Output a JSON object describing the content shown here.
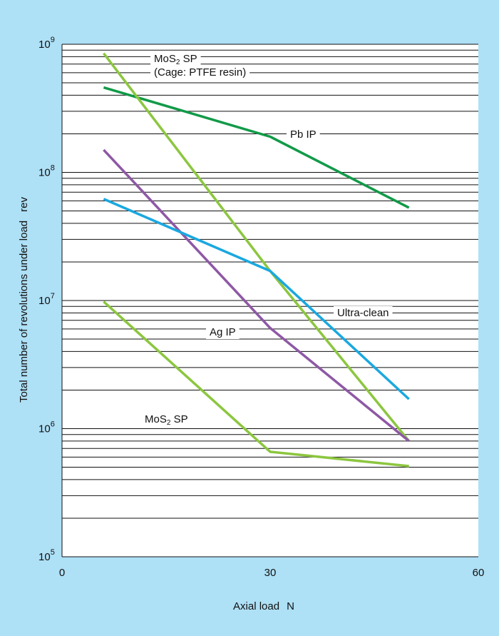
{
  "chart_data": {
    "type": "line",
    "xlabel": "Axial load",
    "xunit": "N",
    "ylabel": "Total number of revolutions under load",
    "yunit": "rev",
    "xlim": [
      0,
      60
    ],
    "ylim": [
      100000,
      1000000000
    ],
    "yscale": "log",
    "x_ticks": [
      "0",
      "30",
      "60"
    ],
    "y_ticks": [
      {
        "base": "10",
        "exp": "5"
      },
      {
        "base": "10",
        "exp": "6"
      },
      {
        "base": "10",
        "exp": "7"
      },
      {
        "base": "10",
        "exp": "8"
      },
      {
        "base": "10",
        "exp": "9"
      }
    ],
    "grid": "horizontal lines at each minor decade step, broken behind labels",
    "colors": {
      "background": "#aee0f6",
      "plot_area": "#ffffff",
      "green_dark": "#129a48",
      "green_light": "#8cc63f",
      "purple": "#8e58a5",
      "cyan": "#1aa8e0"
    },
    "series": [
      {
        "color": "#129a48",
        "x": [
          6,
          30,
          50
        ],
        "y": [
          460000000,
          190000000,
          53000000
        ]
      },
      {
        "color": "#8cc63f",
        "x": [
          6,
          30,
          50
        ],
        "y": [
          850000000,
          17000000,
          800000
        ]
      },
      {
        "color": "#8e58a5",
        "x": [
          6,
          30,
          50
        ],
        "y": [
          150000000,
          6100000,
          800000
        ]
      },
      {
        "color": "#1aa8e0",
        "x": [
          6,
          30,
          50
        ],
        "y": [
          62000000,
          17000000,
          1700000
        ]
      },
      {
        "color": "#8cc63f",
        "x": [
          6,
          30,
          50
        ],
        "y": [
          9800000,
          660000,
          510000
        ]
      }
    ],
    "annotations": [
      {
        "text": "MoS",
        "sub": "2",
        "rest": " SP"
      },
      {
        "text": "(Cage: PTFE resin)"
      },
      {
        "text": "Pb IP"
      },
      {
        "text": "Ultra-clean"
      },
      {
        "text": "Ag IP"
      },
      {
        "text": "MoS",
        "sub": "2",
        "rest": " SP"
      }
    ]
  }
}
